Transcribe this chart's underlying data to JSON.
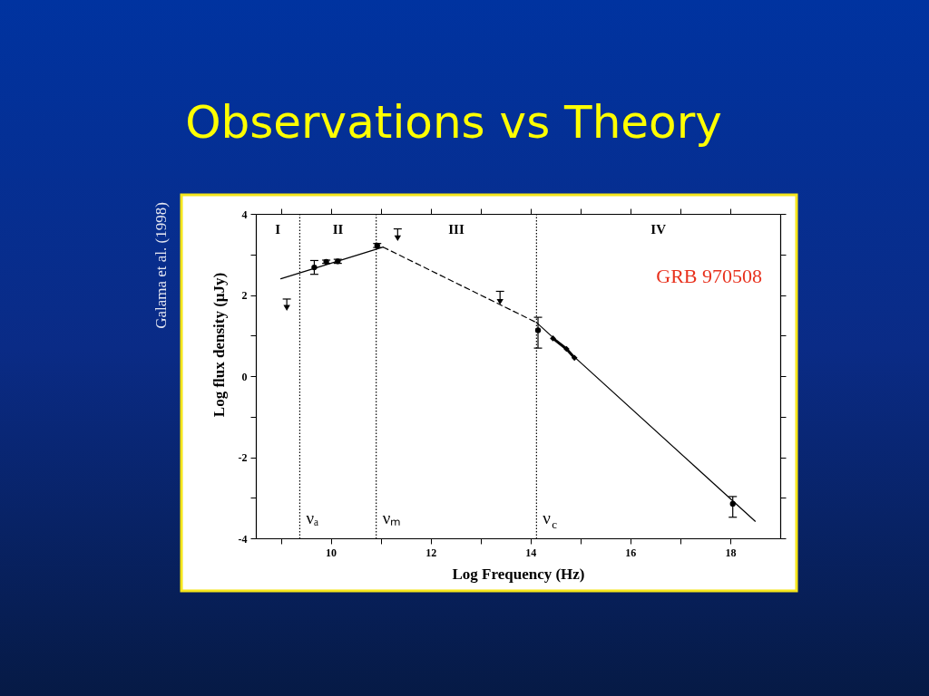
{
  "chart_data": {
    "type": "scatter",
    "title": "Observations vs Theory",
    "xlabel": "Log Frequency (Hz)",
    "ylabel": "Log flux density (μJy)",
    "xlim": [
      8.5,
      19
    ],
    "xticks": [
      {
        "value": 9,
        "label": null
      },
      10,
      {
        "value": 11,
        "label": null
      },
      12,
      {
        "value": 13,
        "label": null
      },
      14,
      {
        "value": 15,
        "label": null
      },
      16,
      {
        "value": 17,
        "label": null
      },
      18
    ],
    "ylim": [
      -4,
      4
    ],
    "yticks": [
      -4,
      {
        "value": -3,
        "label": null
      },
      -2,
      {
        "value": -1,
        "label": null
      },
      0,
      {
        "value": 1,
        "label": null
      },
      2,
      {
        "value": 3,
        "label": null
      },
      4
    ],
    "series": [
      {
        "type": "line",
        "line_style": "solid",
        "marker": "none",
        "color": "#000000",
        "x": [
          9.0,
          11.05
        ],
        "values": [
          2.4,
          3.18
        ]
      },
      {
        "type": "line",
        "line_style": "dashed",
        "marker": "none",
        "color": "#000000",
        "x": [
          11.05,
          14.12
        ],
        "values": [
          3.18,
          1.32
        ]
      },
      {
        "type": "line",
        "line_style": "solid",
        "marker": "none",
        "color": "#000000",
        "x": [
          14.12,
          18.5
        ],
        "values": [
          1.32,
          -3.58
        ]
      },
      {
        "marker": "circle",
        "color": "#000000",
        "x": [
          9.67,
          9.91,
          10.14,
          10.93,
          14.15,
          18.05
        ],
        "values": [
          2.68,
          2.82,
          2.83,
          3.22,
          1.13,
          -3.15
        ],
        "errors": [
          0.17,
          0.04,
          0.05,
          0.05,
          [
            0.69,
            1.45
          ],
          [
            -3.48,
            -2.97
          ]
        ]
      },
      {
        "marker": "triangle",
        "color": "#000000",
        "x": [
          9.12,
          11.34,
          13.39
        ],
        "values": [
          1.68,
          3.4,
          1.83
        ],
        "errors": [
          [
            1.68,
            1.9
          ],
          [
            3.4,
            3.63
          ],
          [
            1.83,
            2.09
          ]
        ]
      },
      {
        "type": "line",
        "marker": "diamond",
        "color": "#000000",
        "x": [
          14.45,
          14.72,
          14.88
        ],
        "values": [
          0.93,
          0.67,
          0.45
        ]
      }
    ],
    "ref_lines": [
      {
        "axis": "x",
        "value": 9.38,
        "label": "νₐ",
        "line_style": "dotted"
      },
      {
        "axis": "x",
        "value": 10.91,
        "label": "νₘ",
        "line_style": "dotted"
      },
      {
        "axis": "x",
        "value": 14.12,
        "label": "ν$_{c}$",
        "line_style": "dotted"
      }
    ],
    "annotations": [
      "I",
      "II",
      "III",
      "IV",
      "GRB 970508",
      "Galama et al. (1998)"
    ]
  }
}
